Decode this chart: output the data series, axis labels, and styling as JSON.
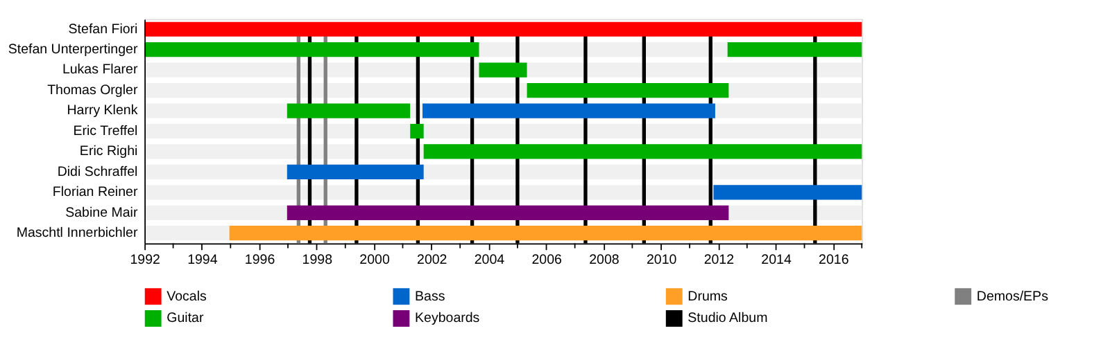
{
  "chart_data": {
    "type": "bar",
    "orientation": "horizontal",
    "categories": [
      "Stefan Fiori",
      "Stefan Unterpertinger",
      "Lukas Flarer",
      "Thomas Orgler",
      "Harry Klenk",
      "Eric Treffel",
      "Eric Righi",
      "Didi Schraffel",
      "Florian Reiner",
      "Sabine Mair",
      "Maschtl Innerbichler"
    ],
    "series": [
      {
        "name": "Vocals",
        "color": "#ff0000",
        "base": [
          1992,
          null,
          null,
          null,
          null,
          null,
          null,
          null,
          null,
          null,
          null
        ],
        "values": [
          25,
          null,
          null,
          null,
          null,
          null,
          null,
          null,
          null,
          null,
          null
        ]
      },
      {
        "name": "Guitar",
        "color": "#00b000",
        "base": [
          null,
          1992,
          2003.66,
          2005.33,
          1996.97,
          2001.26,
          2001.73,
          null,
          null,
          null,
          null
        ],
        "values": [
          null,
          11.66,
          1.67,
          7.03,
          4.29,
          0.47,
          15.27,
          null,
          null,
          null,
          null
        ]
      },
      {
        "color": "#00b000",
        "base": [
          null,
          2012.32,
          null,
          null,
          null,
          null,
          null,
          null,
          null,
          null,
          null
        ],
        "values": [
          null,
          4.68,
          null,
          null,
          null,
          null,
          null,
          null,
          null,
          null,
          null
        ]
      },
      {
        "name": "Bass",
        "color": "#0066cc",
        "base": [
          null,
          null,
          null,
          null,
          2001.69,
          null,
          null,
          1996.97,
          2011.83,
          null,
          null
        ],
        "values": [
          null,
          null,
          null,
          null,
          10.2,
          null,
          null,
          4.76,
          5.17,
          null,
          null
        ]
      },
      {
        "name": "Keyboards",
        "color": "#770077",
        "base": [
          null,
          null,
          null,
          null,
          null,
          null,
          null,
          null,
          null,
          1996.97,
          null
        ],
        "values": [
          null,
          null,
          null,
          null,
          null,
          null,
          null,
          null,
          null,
          15.39,
          null
        ]
      },
      {
        "name": "Drums",
        "color": "#ff9f26",
        "base": [
          null,
          null,
          null,
          null,
          null,
          null,
          null,
          null,
          null,
          null,
          1994.96
        ],
        "values": [
          null,
          null,
          null,
          null,
          null,
          null,
          null,
          null,
          null,
          null,
          22.04
        ]
      }
    ],
    "ref_lines": [
      {
        "axis": "x",
        "value": 1997.76,
        "label": "Studio Album",
        "color": "#000000"
      },
      {
        "axis": "x",
        "value": 1999.39,
        "color": "#000000"
      },
      {
        "axis": "x",
        "value": 2001.53,
        "color": "#000000"
      },
      {
        "axis": "x",
        "value": 2003.42,
        "color": "#000000"
      },
      {
        "axis": "x",
        "value": 2005.0,
        "color": "#000000"
      },
      {
        "axis": "x",
        "value": 2007.37,
        "color": "#000000"
      },
      {
        "axis": "x",
        "value": 2009.41,
        "color": "#000000"
      },
      {
        "axis": "x",
        "value": 2011.73,
        "color": "#000000"
      },
      {
        "axis": "x",
        "value": 2015.37,
        "color": "#000000"
      },
      {
        "axis": "x",
        "value": 1997.37,
        "label": "Demos/EPs",
        "color": "#808080"
      },
      {
        "axis": "x",
        "value": 1998.31,
        "color": "#808080"
      }
    ],
    "xlim": [
      1992,
      2017
    ],
    "xticks": [
      1992,
      {
        "value": 1993,
        "label": null
      },
      1994,
      {
        "value": 1995,
        "label": null
      },
      1996,
      {
        "value": 1997,
        "label": null
      },
      1998,
      {
        "value": 1999,
        "label": null
      },
      2000,
      {
        "value": 2001,
        "label": null
      },
      2002,
      {
        "value": 2003,
        "label": null
      },
      2004,
      {
        "value": 2005,
        "label": null
      },
      2006,
      {
        "value": 2007,
        "label": null
      },
      2008,
      {
        "value": 2009,
        "label": null
      },
      2010,
      {
        "value": 2011,
        "label": null
      },
      2012,
      {
        "value": 2013,
        "label": null
      },
      2014,
      {
        "value": 2015,
        "label": null
      },
      2016,
      {
        "value": 2017,
        "label": null
      }
    ],
    "grid": false,
    "legend": "bottom"
  }
}
